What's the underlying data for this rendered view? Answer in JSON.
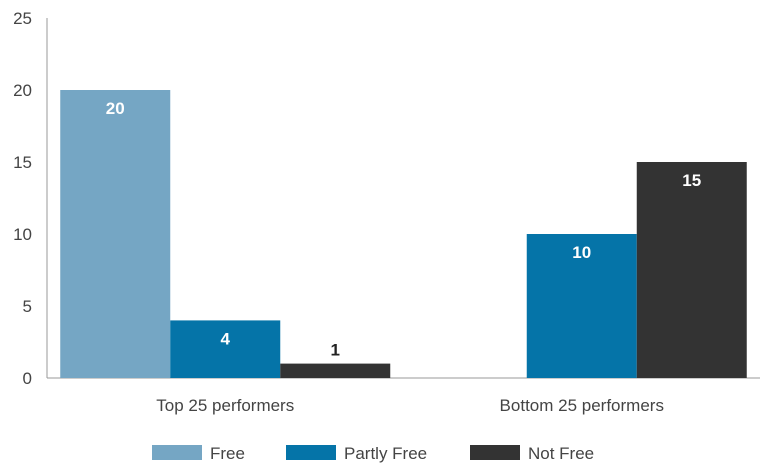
{
  "chart_data": {
    "type": "bar",
    "categories": [
      "Top 25 performers",
      "Bottom 25 performers"
    ],
    "series": [
      {
        "name": "Free",
        "values": [
          20,
          0
        ],
        "color": "#75a6c4"
      },
      {
        "name": "Partly Free",
        "values": [
          4,
          10
        ],
        "color": "#0574a8"
      },
      {
        "name": "Not Free",
        "values": [
          1,
          15
        ],
        "color": "#333333"
      }
    ],
    "ylim": [
      0,
      25
    ],
    "yticks": [
      "0",
      "5",
      "10",
      "15",
      "20",
      "25"
    ],
    "grid": false,
    "legend_position": "bottom"
  }
}
